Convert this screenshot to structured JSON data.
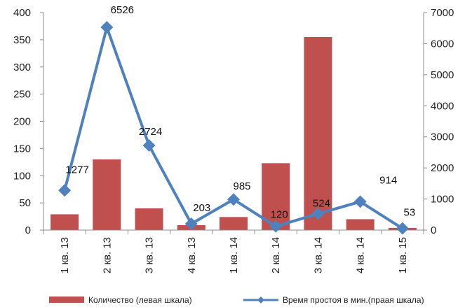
{
  "chart_data": {
    "type": "bar",
    "categories": [
      "1 кв. 13",
      "2 кв. 13",
      "3 кв. 13",
      "4 кв. 13",
      "1 кв. 14",
      "2 кв. 14",
      "3 кв. 14",
      "4 кв. 14",
      "1 кв. 15"
    ],
    "series": [
      {
        "name": "Количество (левая шкала)",
        "type": "bar",
        "axis": "left",
        "color": "#C0504D",
        "values": [
          29,
          130,
          40,
          9,
          24,
          123,
          355,
          20,
          4
        ]
      },
      {
        "name": "Время простоя в мин.(праая шкала)",
        "type": "line",
        "axis": "right",
        "color": "#4F81BD",
        "marker": "diamond",
        "values": [
          1277,
          6526,
          2724,
          203,
          985,
          120,
          524,
          914,
          53
        ],
        "labels": [
          "1277",
          "6526",
          "2724",
          "203",
          "985",
          "120",
          "524",
          "914",
          "53"
        ]
      }
    ],
    "y_left": {
      "lim": [
        0,
        400
      ],
      "ticks": [
        "0",
        "50",
        "100",
        "150",
        "200",
        "250",
        "300",
        "350",
        "400"
      ]
    },
    "y_right": {
      "lim": [
        0,
        7000
      ],
      "ticks": [
        "0",
        "1000",
        "2000",
        "3000",
        "4000",
        "5000",
        "6000",
        "7000"
      ]
    },
    "grid": false,
    "legend": "bottom"
  }
}
